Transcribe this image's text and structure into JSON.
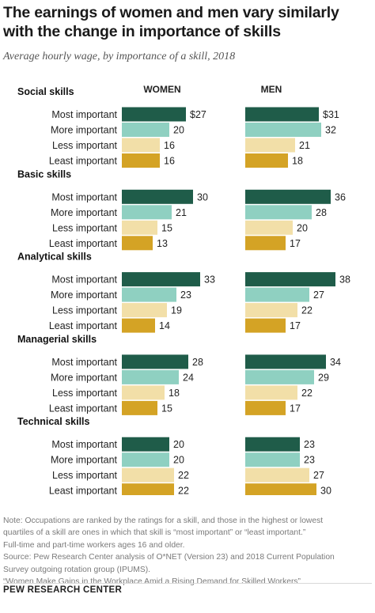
{
  "title": "The earnings of women and men vary similarly with the change in importance of skills",
  "subtitle": "Average hourly wage, by importance of a skill, 2018",
  "notes": [
    "Note: Occupations are ranked by the ratings for a skill, and those in the highest or lowest",
    "quartiles of a skill are ones in which that skill is “most important” or “least important.”",
    "Full-time and part-time workers ages 16 and older.",
    "Source: Pew Research Center analysis of O*NET (Version 23) and 2018 Current Population",
    "Survey outgoing rotation group (IPUMS).",
    "“Women Make Gains in the Workplace Amid a Rising Demand for Skilled Workers”"
  ],
  "brand": "PEW RESEARCH CENTER",
  "colors": {
    "most": "#1f5c49",
    "more": "#8fd0c1",
    "less": "#f2dfa8",
    "least": "#d4a325"
  },
  "chart_data": {
    "type": "bar",
    "orientation": "horizontal",
    "panels": [
      "WOMEN",
      "MEN"
    ],
    "levels": [
      "Most important",
      "More important",
      "Less important",
      "Least important"
    ],
    "first_value_prefix": "$",
    "groups": [
      {
        "name": "Social skills",
        "women": [
          27,
          20,
          16,
          16
        ],
        "men": [
          31,
          32,
          21,
          18
        ]
      },
      {
        "name": "Basic skills",
        "women": [
          30,
          21,
          15,
          13
        ],
        "men": [
          36,
          28,
          20,
          17
        ]
      },
      {
        "name": "Analytical skills",
        "women": [
          33,
          23,
          19,
          14
        ],
        "men": [
          38,
          27,
          22,
          17
        ]
      },
      {
        "name": "Managerial skills",
        "women": [
          28,
          24,
          18,
          15
        ],
        "men": [
          34,
          29,
          22,
          17
        ]
      },
      {
        "name": "Technical skills",
        "women": [
          20,
          20,
          22,
          22
        ],
        "men": [
          23,
          23,
          27,
          30
        ]
      }
    ]
  }
}
